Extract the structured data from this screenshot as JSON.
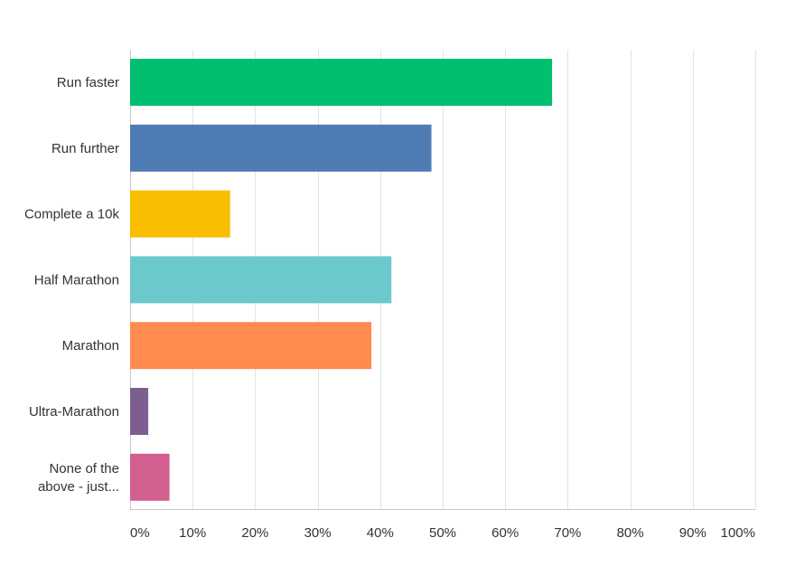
{
  "chart_data": {
    "type": "bar",
    "orientation": "horizontal",
    "categories": [
      [
        "Run faster"
      ],
      [
        "Run further"
      ],
      [
        "Complete a 10k"
      ],
      [
        "Half Marathon"
      ],
      [
        "Marathon"
      ],
      [
        "Ultra-Marathon"
      ],
      [
        "None of the",
        "above - just..."
      ]
    ],
    "values": [
      67.5,
      48.2,
      16.0,
      41.8,
      38.6,
      2.9,
      6.3
    ],
    "colors": [
      "#00bf6f",
      "#507cb6",
      "#f9be00",
      "#6bc8cd",
      "#ff8b4f",
      "#7d5e90",
      "#d25f90"
    ],
    "xlim": [
      0,
      100
    ],
    "xticks": [
      "0%",
      "10%",
      "20%",
      "30%",
      "40%",
      "50%",
      "60%",
      "70%",
      "80%",
      "90%",
      "100%"
    ],
    "grid": true,
    "legend": "none"
  }
}
